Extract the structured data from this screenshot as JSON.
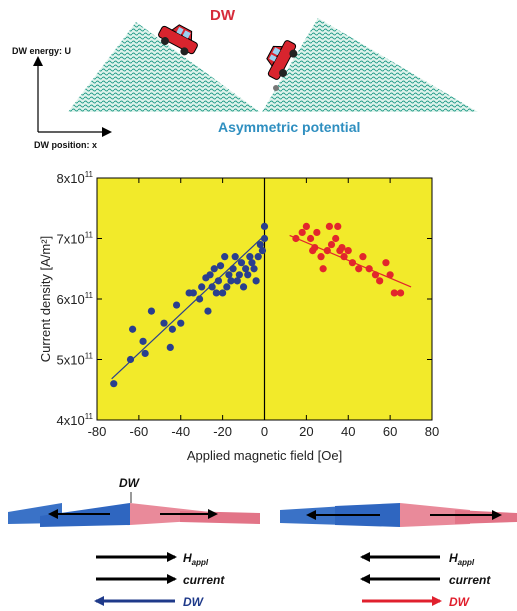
{
  "top_diagram": {
    "dw_label": "DW",
    "y_axis_label": "DW energy: U",
    "x_axis_label": "DW position: x",
    "caption": "Asymmetric potential"
  },
  "chart_data": {
    "type": "scatter",
    "xlabel": "Applied magnetic field [Oe]",
    "ylabel": "Current density [A/m²]",
    "xlim": [
      -80,
      80
    ],
    "ylim": [
      400000000000.0,
      800000000000.0
    ],
    "x_ticks": [
      "-80",
      "-60",
      "-40",
      "-20",
      "0",
      "20",
      "40",
      "60",
      "80"
    ],
    "y_ticks": [
      {
        "base": "4x10",
        "exp": "11"
      },
      {
        "base": "5x10",
        "exp": "11"
      },
      {
        "base": "6x10",
        "exp": "11"
      },
      {
        "base": "7x10",
        "exp": "11"
      },
      {
        "base": "8x10",
        "exp": "11"
      }
    ],
    "background": "#f2ea2a",
    "series": [
      {
        "color": "#2a3f8e",
        "points": [
          [
            -72,
            460000000000.0
          ],
          [
            -64,
            500000000000.0
          ],
          [
            -63,
            550000000000.0
          ],
          [
            -58,
            530000000000.0
          ],
          [
            -57,
            510000000000.0
          ],
          [
            -54,
            580000000000.0
          ],
          [
            -48,
            560000000000.0
          ],
          [
            -45,
            520000000000.0
          ],
          [
            -44,
            550000000000.0
          ],
          [
            -42,
            590000000000.0
          ],
          [
            -40,
            560000000000.0
          ],
          [
            -36,
            610000000000.0
          ],
          [
            -34,
            610000000000.0
          ],
          [
            -31,
            600000000000.0
          ],
          [
            -30,
            620000000000.0
          ],
          [
            -28,
            635000000000.0
          ],
          [
            -27,
            580000000000.0
          ],
          [
            -26,
            640000000000.0
          ],
          [
            -25,
            620000000000.0
          ],
          [
            -24,
            650000000000.0
          ],
          [
            -23,
            610000000000.0
          ],
          [
            -22,
            630000000000.0
          ],
          [
            -21,
            655000000000.0
          ],
          [
            -20,
            610000000000.0
          ],
          [
            -19,
            670000000000.0
          ],
          [
            -18,
            620000000000.0
          ],
          [
            -17,
            640000000000.0
          ],
          [
            -16,
            630000000000.0
          ],
          [
            -15,
            650000000000.0
          ],
          [
            -14,
            670000000000.0
          ],
          [
            -13,
            630000000000.0
          ],
          [
            -12,
            640000000000.0
          ],
          [
            -11,
            660000000000.0
          ],
          [
            -10,
            620000000000.0
          ],
          [
            -9,
            650000000000.0
          ],
          [
            -8,
            640000000000.0
          ],
          [
            -7,
            670000000000.0
          ],
          [
            -6,
            660000000000.0
          ],
          [
            -5,
            650000000000.0
          ],
          [
            -4,
            630000000000.0
          ],
          [
            -3,
            670000000000.0
          ],
          [
            -2,
            690000000000.0
          ],
          [
            0,
            720000000000.0
          ],
          [
            0,
            700000000000.0
          ],
          [
            -1,
            680000000000.0
          ]
        ],
        "fit": [
          [
            -73,
            468000000000.0
          ],
          [
            0,
            705000000000.0
          ]
        ]
      },
      {
        "color": "#e2262c",
        "points": [
          [
            15,
            700000000000.0
          ],
          [
            18,
            710000000000.0
          ],
          [
            20,
            720000000000.0
          ],
          [
            22,
            700000000000.0
          ],
          [
            24,
            685000000000.0
          ],
          [
            25,
            710000000000.0
          ],
          [
            27,
            670000000000.0
          ],
          [
            28,
            650000000000.0
          ],
          [
            30,
            680000000000.0
          ],
          [
            31,
            720000000000.0
          ],
          [
            32,
            690000000000.0
          ],
          [
            34,
            700000000000.0
          ],
          [
            35,
            720000000000.0
          ],
          [
            36,
            680000000000.0
          ],
          [
            38,
            670000000000.0
          ],
          [
            40,
            680000000000.0
          ],
          [
            42,
            660000000000.0
          ],
          [
            45,
            650000000000.0
          ],
          [
            47,
            670000000000.0
          ],
          [
            50,
            650000000000.0
          ],
          [
            53,
            640000000000.0
          ],
          [
            55,
            630000000000.0
          ],
          [
            58,
            660000000000.0
          ],
          [
            60,
            640000000000.0
          ],
          [
            62,
            610000000000.0
          ],
          [
            65,
            610000000000.0
          ],
          [
            23,
            680000000000.0
          ],
          [
            37,
            685000000000.0
          ]
        ],
        "fit": [
          [
            12,
            705000000000.0
          ],
          [
            70,
            620000000000.0
          ]
        ]
      }
    ]
  },
  "bottom_diagram": {
    "dw_label": "DW",
    "left": {
      "field_label": "H",
      "field_sub": "appl",
      "current_label": "current",
      "dw_label": "DW",
      "field_direction": "right",
      "current_direction": "right",
      "dw_direction": "left"
    },
    "right": {
      "field_label": "H",
      "field_sub": "appl",
      "current_label": "current",
      "dw_label": "DW",
      "field_direction": "left",
      "current_direction": "left",
      "dw_direction": "right"
    }
  }
}
